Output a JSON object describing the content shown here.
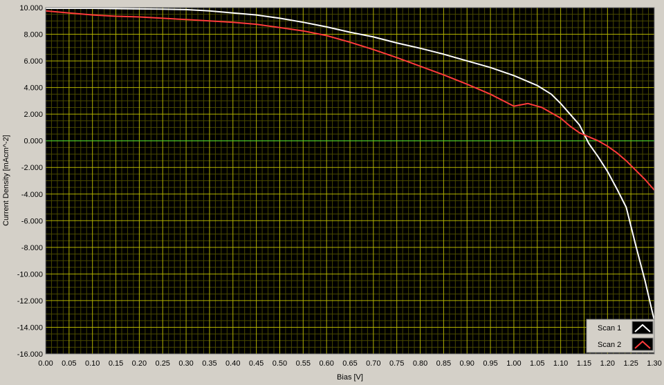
{
  "colors": {
    "plot_background": "#000000",
    "grid_major": "#b3b300",
    "grid_minor": "#4a4a00",
    "zero_line": "#33cc33",
    "panel": "#d4d0c8",
    "legend_swatch_bg": "#000000"
  },
  "chart_data": {
    "type": "line",
    "title": "",
    "xlabel": "Bias [V]",
    "ylabel": "Current Density [mAcm^-2]",
    "xlim": [
      0,
      1.3
    ],
    "ylim": [
      -16,
      10
    ],
    "grid": true,
    "legend_position": "bottom-right",
    "x_ticks": [
      "0.00",
      "0.05",
      "0.10",
      "0.15",
      "0.20",
      "0.25",
      "0.30",
      "0.35",
      "0.40",
      "0.45",
      "0.50",
      "0.55",
      "0.60",
      "0.65",
      "0.70",
      "0.75",
      "0.80",
      "0.85",
      "0.90",
      "0.95",
      "1.00",
      "1.05",
      "1.10",
      "1.15",
      "1.20",
      "1.25",
      "1.30"
    ],
    "y_ticks": [
      "10.000",
      "8.000",
      "6.000",
      "4.000",
      "2.000",
      "0.000",
      "-2.000",
      "-4.000",
      "-6.000",
      "-8.000",
      "-10.000",
      "-12.000",
      "-14.000",
      "-16.000"
    ],
    "series": [
      {
        "name": "Scan 1",
        "color": "#ffffff",
        "x": [
          0.0,
          0.05,
          0.1,
          0.15,
          0.2,
          0.25,
          0.3,
          0.35,
          0.4,
          0.45,
          0.5,
          0.55,
          0.6,
          0.65,
          0.7,
          0.75,
          0.8,
          0.85,
          0.9,
          0.95,
          1.0,
          1.05,
          1.08,
          1.1,
          1.12,
          1.14,
          1.15,
          1.16,
          1.18,
          1.2,
          1.22,
          1.24,
          1.26,
          1.28,
          1.3
        ],
        "y": [
          9.95,
          9.95,
          9.95,
          9.92,
          9.9,
          9.88,
          9.85,
          9.75,
          9.6,
          9.45,
          9.2,
          8.9,
          8.55,
          8.15,
          7.8,
          7.35,
          6.95,
          6.5,
          6.0,
          5.5,
          4.9,
          4.15,
          3.5,
          2.8,
          2.0,
          1.2,
          0.5,
          -0.2,
          -1.2,
          -2.3,
          -3.6,
          -5.0,
          -7.8,
          -10.5,
          -13.5
        ]
      },
      {
        "name": "Scan 2",
        "color": "#ff3b3b",
        "x": [
          0.0,
          0.05,
          0.1,
          0.15,
          0.2,
          0.25,
          0.3,
          0.35,
          0.4,
          0.45,
          0.5,
          0.55,
          0.6,
          0.65,
          0.7,
          0.75,
          0.8,
          0.85,
          0.9,
          0.95,
          1.0,
          1.03,
          1.06,
          1.08,
          1.1,
          1.12,
          1.14,
          1.16,
          1.18,
          1.2,
          1.22,
          1.24,
          1.26,
          1.28,
          1.3
        ],
        "y": [
          9.75,
          9.6,
          9.45,
          9.35,
          9.3,
          9.2,
          9.1,
          9.0,
          8.9,
          8.75,
          8.5,
          8.25,
          7.9,
          7.4,
          6.85,
          6.25,
          5.6,
          4.95,
          4.25,
          3.5,
          2.6,
          2.8,
          2.5,
          2.1,
          1.7,
          1.1,
          0.6,
          0.3,
          0.0,
          -0.4,
          -0.9,
          -1.5,
          -2.2,
          -2.9,
          -3.7
        ]
      }
    ]
  }
}
